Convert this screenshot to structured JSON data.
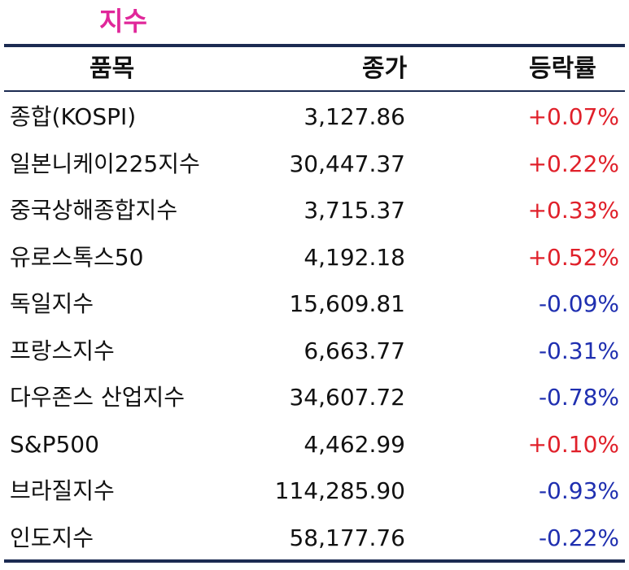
{
  "title": "지수",
  "headers": {
    "name": "품목",
    "price": "종가",
    "change": "등락률"
  },
  "rows": [
    {
      "name": "종합(KOSPI)",
      "price": "3,127.86",
      "change": "+0.07%",
      "dir": "up"
    },
    {
      "name": "일본니케이225지수",
      "price": "30,447.37",
      "change": "+0.22%",
      "dir": "up"
    },
    {
      "name": "중국상해종합지수",
      "price": "3,715.37",
      "change": "+0.33%",
      "dir": "up"
    },
    {
      "name": "유로스톡스50",
      "price": "4,192.18",
      "change": "+0.52%",
      "dir": "up"
    },
    {
      "name": "독일지수",
      "price": "15,609.81",
      "change": "-0.09%",
      "dir": "down"
    },
    {
      "name": "프랑스지수",
      "price": "6,663.77",
      "change": "-0.31%",
      "dir": "down"
    },
    {
      "name": "다우존스 산업지수",
      "price": "34,607.72",
      "change": "-0.78%",
      "dir": "down"
    },
    {
      "name": "S&P500",
      "price": "4,462.99",
      "change": "+0.10%",
      "dir": "up"
    },
    {
      "name": "브라질지수",
      "price": "114,285.90",
      "change": "-0.93%",
      "dir": "down"
    },
    {
      "name": "인도지수",
      "price": "58,177.76",
      "change": "-0.22%",
      "dir": "down"
    }
  ],
  "colors": {
    "title": "#e0279a",
    "up": "#e0202a",
    "down": "#1f2fb0",
    "rule": "#1c2b52"
  }
}
